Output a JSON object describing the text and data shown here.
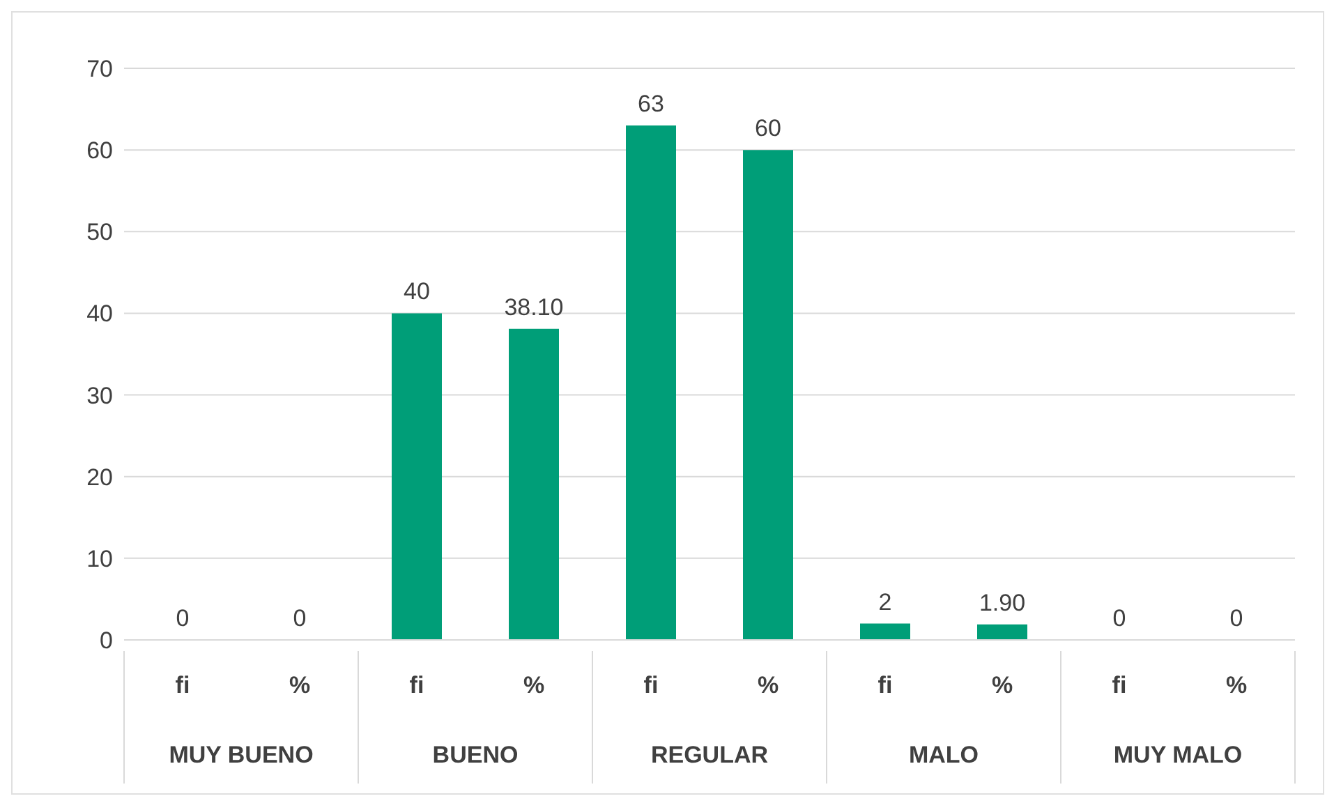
{
  "chart_data": {
    "type": "bar",
    "categories": [
      "fi",
      "%",
      "fi",
      "%",
      "fi",
      "%",
      "fi",
      "%",
      "fi",
      "%"
    ],
    "values": [
      0,
      0,
      40,
      38.1,
      63,
      60,
      2,
      1.9,
      0,
      0
    ],
    "value_labels": [
      "0",
      "0",
      "40",
      "38.10",
      "63",
      "60",
      "2",
      "1.90",
      "0",
      "0"
    ],
    "color": "#009e78",
    "annotations": [
      "MUY BUENO",
      "BUENO",
      "REGULAR",
      "MALO",
      "MUY MALO"
    ],
    "ylim": [
      0,
      70
    ],
    "yticks": [
      0,
      10,
      20,
      30,
      40,
      50,
      60,
      70
    ],
    "grid": "y",
    "legend": false
  }
}
